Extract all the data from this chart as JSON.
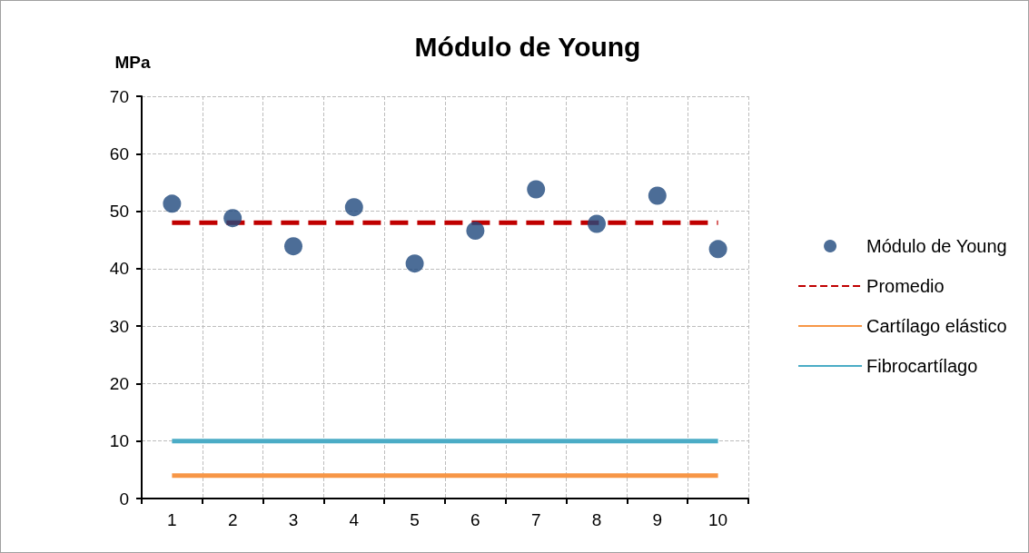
{
  "chart_data": {
    "type": "scatter",
    "title": "Módulo de Young",
    "ylabel": "MPa",
    "categories": [
      "1",
      "2",
      "3",
      "4",
      "5",
      "6",
      "7",
      "8",
      "9",
      "10"
    ],
    "ylim": [
      0,
      70
    ],
    "yticks": [
      0,
      10,
      20,
      30,
      40,
      50,
      60,
      70
    ],
    "grid": true,
    "legend": "right",
    "series": [
      {
        "name": "Módulo de Young",
        "marker": "circle",
        "color": "#1f497d",
        "values": [
          51.3,
          48.8,
          43.9,
          50.7,
          40.9,
          46.6,
          53.8,
          47.8,
          52.7,
          43.4
        ]
      },
      {
        "name": "Promedio",
        "type": "line",
        "marker": "none",
        "line_style": "dashed",
        "color": "#c00000",
        "values": [
          48,
          48,
          48,
          48,
          48,
          48,
          48,
          48,
          48,
          48
        ]
      },
      {
        "name": "Cartílago elástico",
        "type": "line",
        "marker": "none",
        "line_style": "solid",
        "color": "#f79646",
        "values": [
          4,
          4,
          4,
          4,
          4,
          4,
          4,
          4,
          4,
          4
        ]
      },
      {
        "name": "Fibrocartílago",
        "type": "line",
        "marker": "none",
        "line_style": "solid",
        "color": "#4bacc6",
        "values": [
          10,
          10,
          10,
          10,
          10,
          10,
          10,
          10,
          10,
          10
        ]
      }
    ]
  }
}
